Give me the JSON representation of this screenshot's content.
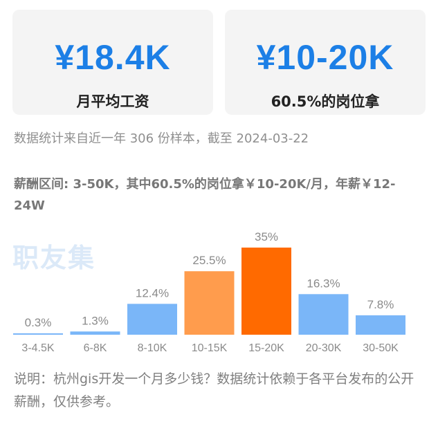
{
  "cards": [
    {
      "value": "¥18.4K",
      "label": "月平均工资"
    },
    {
      "value": "¥10-20K",
      "label": "60.5%的岗位拿"
    }
  ],
  "meta": "数据统计来自近一年 306 份样本，截至 2024-03-22",
  "range_text": "薪酬区间: 3-50K，其中60.5%的岗位拿￥10-20K/月，年薪￥12-24W",
  "watermark": "职友集",
  "note": "说明：杭州gis开发一个月多少钱？数据统计依赖于各平台发布的公开薪酬，仅供参考。",
  "colors": {
    "accent": "#1c7fe6",
    "bar_default": "#7ab6f8",
    "bar_highlight": "#ff9c4d",
    "bar_peak": "#ff6a00"
  },
  "chart_data": {
    "type": "bar",
    "categories": [
      "3-4.5K",
      "6-8K",
      "8-10K",
      "10-15K",
      "15-20K",
      "20-30K",
      "30-50K"
    ],
    "values": [
      0.3,
      1.3,
      12.4,
      25.5,
      35,
      16.3,
      7.8
    ],
    "labels": [
      "0.3%",
      "1.3%",
      "12.4%",
      "25.5%",
      "35%",
      "16.3%",
      "7.8%"
    ],
    "highlight": [
      "default",
      "default",
      "default",
      "highlight",
      "peak",
      "default",
      "default"
    ],
    "unit": "%",
    "ylim": [
      0,
      35
    ],
    "grid": false,
    "legend": "none"
  }
}
